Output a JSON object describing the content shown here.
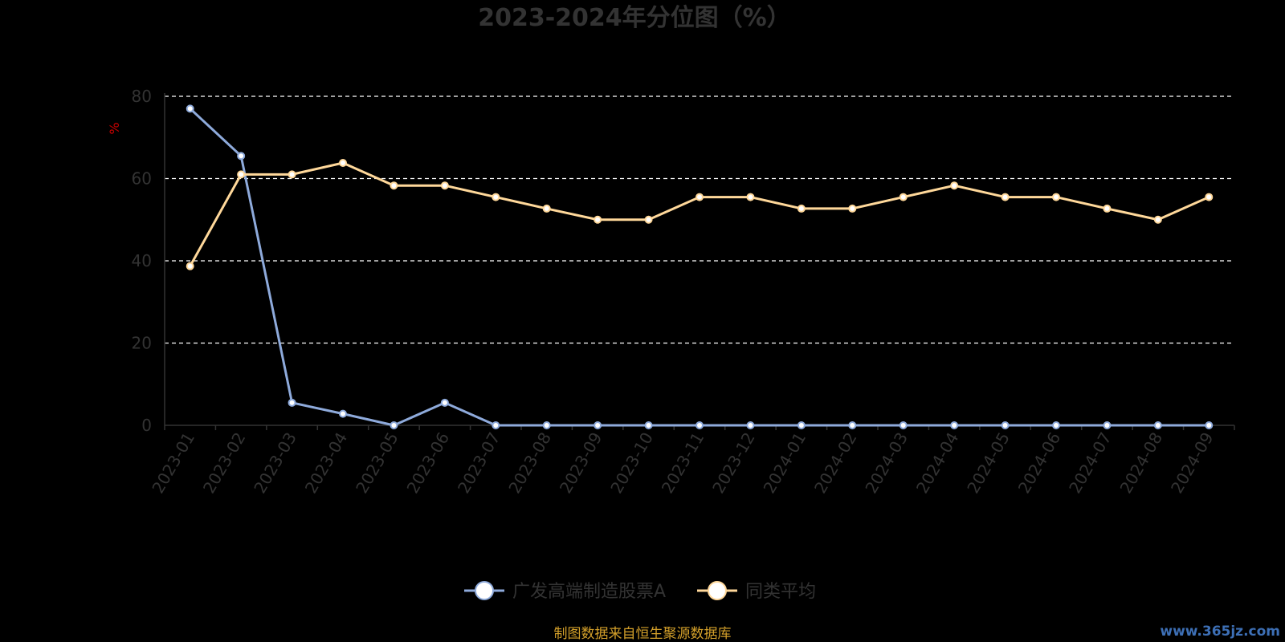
{
  "chart_data": {
    "type": "line",
    "title": "2023-2024年分位图（%）",
    "ylabel": "%",
    "ylim": [
      0,
      80
    ],
    "yticks": [
      0,
      20,
      40,
      60,
      80
    ],
    "grid": true,
    "legend_position": "bottom",
    "categories": [
      "2023-01",
      "2023-02",
      "2023-03",
      "2023-04",
      "2023-05",
      "2023-06",
      "2023-07",
      "2023-08",
      "2023-09",
      "2023-10",
      "2023-11",
      "2023-12",
      "2024-01",
      "2024-02",
      "2024-03",
      "2024-04",
      "2024-05",
      "2024-06",
      "2024-07",
      "2024-08",
      "2024-09"
    ],
    "series": [
      {
        "name": "广发高端制造股票A",
        "color": "#8eaadb",
        "values": [
          77,
          65.5,
          5.5,
          2.8,
          0,
          5.5,
          0,
          0,
          0,
          0,
          0,
          0,
          0,
          0,
          0,
          0,
          0,
          0,
          0,
          0,
          0
        ]
      },
      {
        "name": "同类平均",
        "color": "#ffd89a",
        "values": [
          38.7,
          61,
          61,
          63.8,
          58.3,
          58.3,
          55.5,
          52.7,
          50,
          50,
          55.5,
          55.5,
          52.7,
          52.7,
          55.5,
          58.3,
          55.5,
          55.5,
          52.7,
          50,
          55.5
        ]
      }
    ]
  },
  "footer": {
    "source": "制图数据来自恒生聚源数据库",
    "watermark": "www.365jz.com"
  }
}
